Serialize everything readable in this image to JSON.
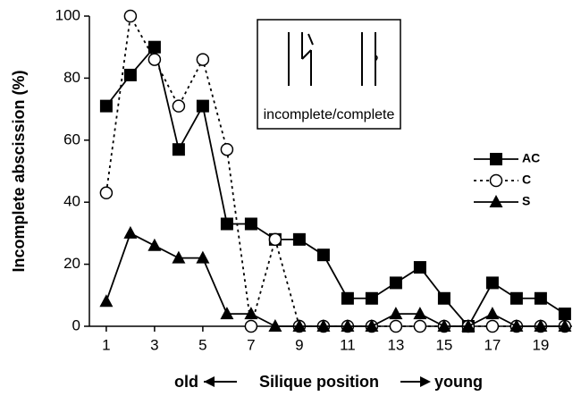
{
  "chart_data": {
    "type": "line",
    "ylabel": "Incomplete abscission (%)",
    "xlabel_left": "old",
    "xlabel": "Silique position",
    "xlabel_right": "young",
    "inset_label": "incomplete/complete",
    "x": [
      1,
      2,
      3,
      4,
      5,
      6,
      7,
      8,
      9,
      10,
      11,
      12,
      13,
      14,
      15,
      16,
      17,
      18,
      19,
      20
    ],
    "xlim": [
      0.3,
      20.3
    ],
    "xticks": [
      1,
      3,
      5,
      7,
      9,
      11,
      13,
      15,
      17,
      19
    ],
    "ylim": [
      0,
      100
    ],
    "yticks": [
      0,
      20,
      40,
      60,
      80,
      100
    ],
    "series": [
      {
        "name": "AC",
        "color": "#000000",
        "marker": "square",
        "dash": "solid",
        "values": [
          71,
          81,
          90,
          57,
          71,
          33,
          33,
          28,
          28,
          23,
          9,
          9,
          14,
          19,
          9,
          0,
          14,
          9,
          9,
          4
        ]
      },
      {
        "name": "C",
        "color": "#000000",
        "marker": "circle",
        "dash": "dotted",
        "values": [
          43,
          100,
          86,
          71,
          86,
          57,
          0,
          28,
          0,
          0,
          0,
          0,
          0,
          0,
          0,
          0,
          0,
          0,
          0,
          0
        ]
      },
      {
        "name": "S",
        "color": "#000000",
        "marker": "triangle",
        "dash": "solid",
        "values": [
          8,
          30,
          26,
          22,
          22,
          4,
          4,
          0,
          0,
          0,
          0,
          0,
          4,
          4,
          0,
          0,
          4,
          0,
          0,
          0
        ]
      }
    ]
  }
}
